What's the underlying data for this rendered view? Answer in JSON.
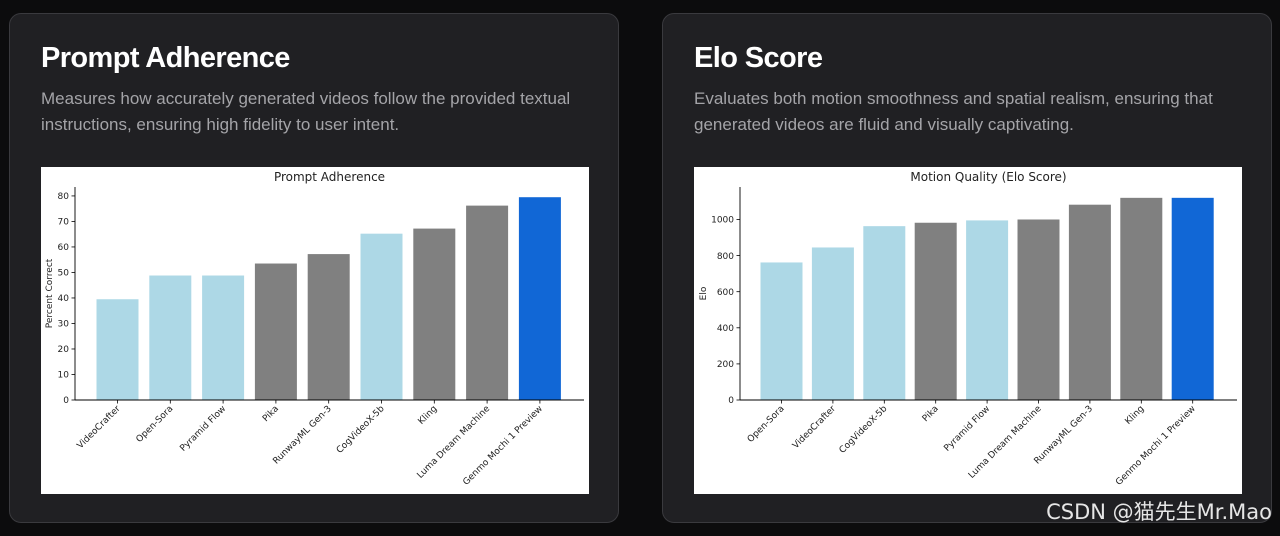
{
  "cards": [
    {
      "heading": "Prompt Adherence",
      "description": "Measures how accurately generated videos follow the provided textual instructions, ensuring high fidelity to user intent."
    },
    {
      "heading": "Elo Score",
      "description": "Evaluates both motion smoothness and spatial realism, ensuring that generated videos are fluid and visually captivating."
    }
  ],
  "watermark": "CSDN @猫先生Mr.Mao",
  "chart_data": [
    {
      "type": "bar",
      "title": "Prompt Adherence",
      "xlabel": "",
      "ylabel": "Percent Correct",
      "categories": [
        "VideoCrafter",
        "Open-Sora",
        "Pyramid Flow",
        "Pika",
        "RunwayML Gen-3",
        "CogVideoX-5b",
        "Kling",
        "Luma Dream Machine",
        "Genmo Mochi 1 Preview"
      ],
      "values": [
        39.5,
        48.8,
        48.8,
        53.5,
        57.2,
        65.2,
        67.2,
        76.2,
        79.5
      ],
      "bar_colors": [
        "#add8e6",
        "#add8e6",
        "#add8e6",
        "#808080",
        "#808080",
        "#add8e6",
        "#808080",
        "#808080",
        "#1167d6"
      ],
      "yticks": [
        0,
        10,
        20,
        30,
        40,
        50,
        60,
        70,
        80
      ],
      "ylim": [
        0,
        83.5
      ],
      "grid": false,
      "legend": "none"
    },
    {
      "type": "bar",
      "title": "Motion Quality (Elo Score)",
      "xlabel": "",
      "ylabel": "Elo",
      "categories": [
        "Open-Sora",
        "VideoCrafter",
        "CogVideoX-5b",
        "Pika",
        "Pyramid Flow",
        "Luma Dream Machine",
        "RunwayML Gen-3",
        "Kling",
        "Genmo Mochi 1 Preview"
      ],
      "values": [
        762,
        845,
        963,
        982,
        995,
        1000,
        1082,
        1120,
        1120
      ],
      "bar_colors": [
        "#add8e6",
        "#add8e6",
        "#add8e6",
        "#808080",
        "#add8e6",
        "#808080",
        "#808080",
        "#808080",
        "#1167d6"
      ],
      "yticks": [
        0,
        200,
        400,
        600,
        800,
        1000
      ],
      "ylim": [
        0,
        1180
      ],
      "grid": false,
      "legend": "none"
    }
  ]
}
